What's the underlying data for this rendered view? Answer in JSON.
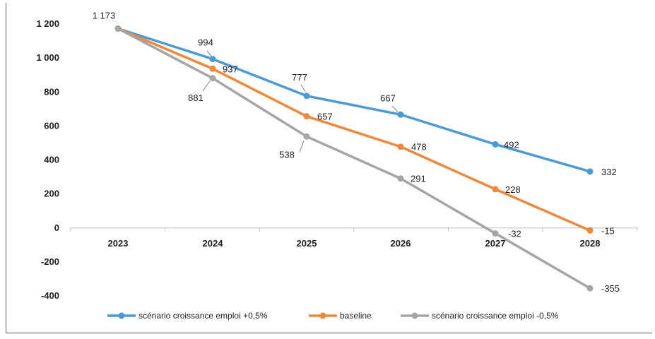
{
  "chart_data": {
    "type": "line",
    "title": "",
    "xlabel": "",
    "ylabel": "",
    "categories": [
      "2023",
      "2024",
      "2025",
      "2026",
      "2027",
      "2028"
    ],
    "ylim": [
      -400,
      1200
    ],
    "yticks": [
      -400,
      -200,
      0,
      200,
      400,
      600,
      800,
      1000,
      1200
    ],
    "ytick_labels": [
      "-400",
      "-200",
      "0",
      "200",
      "400",
      "600",
      "800",
      "1 000",
      "1 200"
    ],
    "grid": false,
    "legend_position": "bottom",
    "series": [
      {
        "name": "scénario croissance emploi +0,5%",
        "color": "#4a9ad6",
        "values": [
          1173,
          994,
          777,
          667,
          492,
          332
        ],
        "labels": [
          "1 173",
          "994",
          "777",
          "667",
          "492",
          "332"
        ]
      },
      {
        "name": "baseline",
        "color": "#f0883a",
        "values": [
          1173,
          937,
          657,
          478,
          228,
          -15
        ],
        "labels": [
          "",
          "937",
          "657",
          "478",
          "228",
          "-15"
        ]
      },
      {
        "name": "scénario croissance emploi -0,5%",
        "color": "#a5a5a5",
        "values": [
          1173,
          881,
          538,
          291,
          -32,
          -355
        ],
        "labels": [
          "",
          "881",
          "538",
          "291",
          "-32",
          "-355"
        ]
      }
    ]
  }
}
